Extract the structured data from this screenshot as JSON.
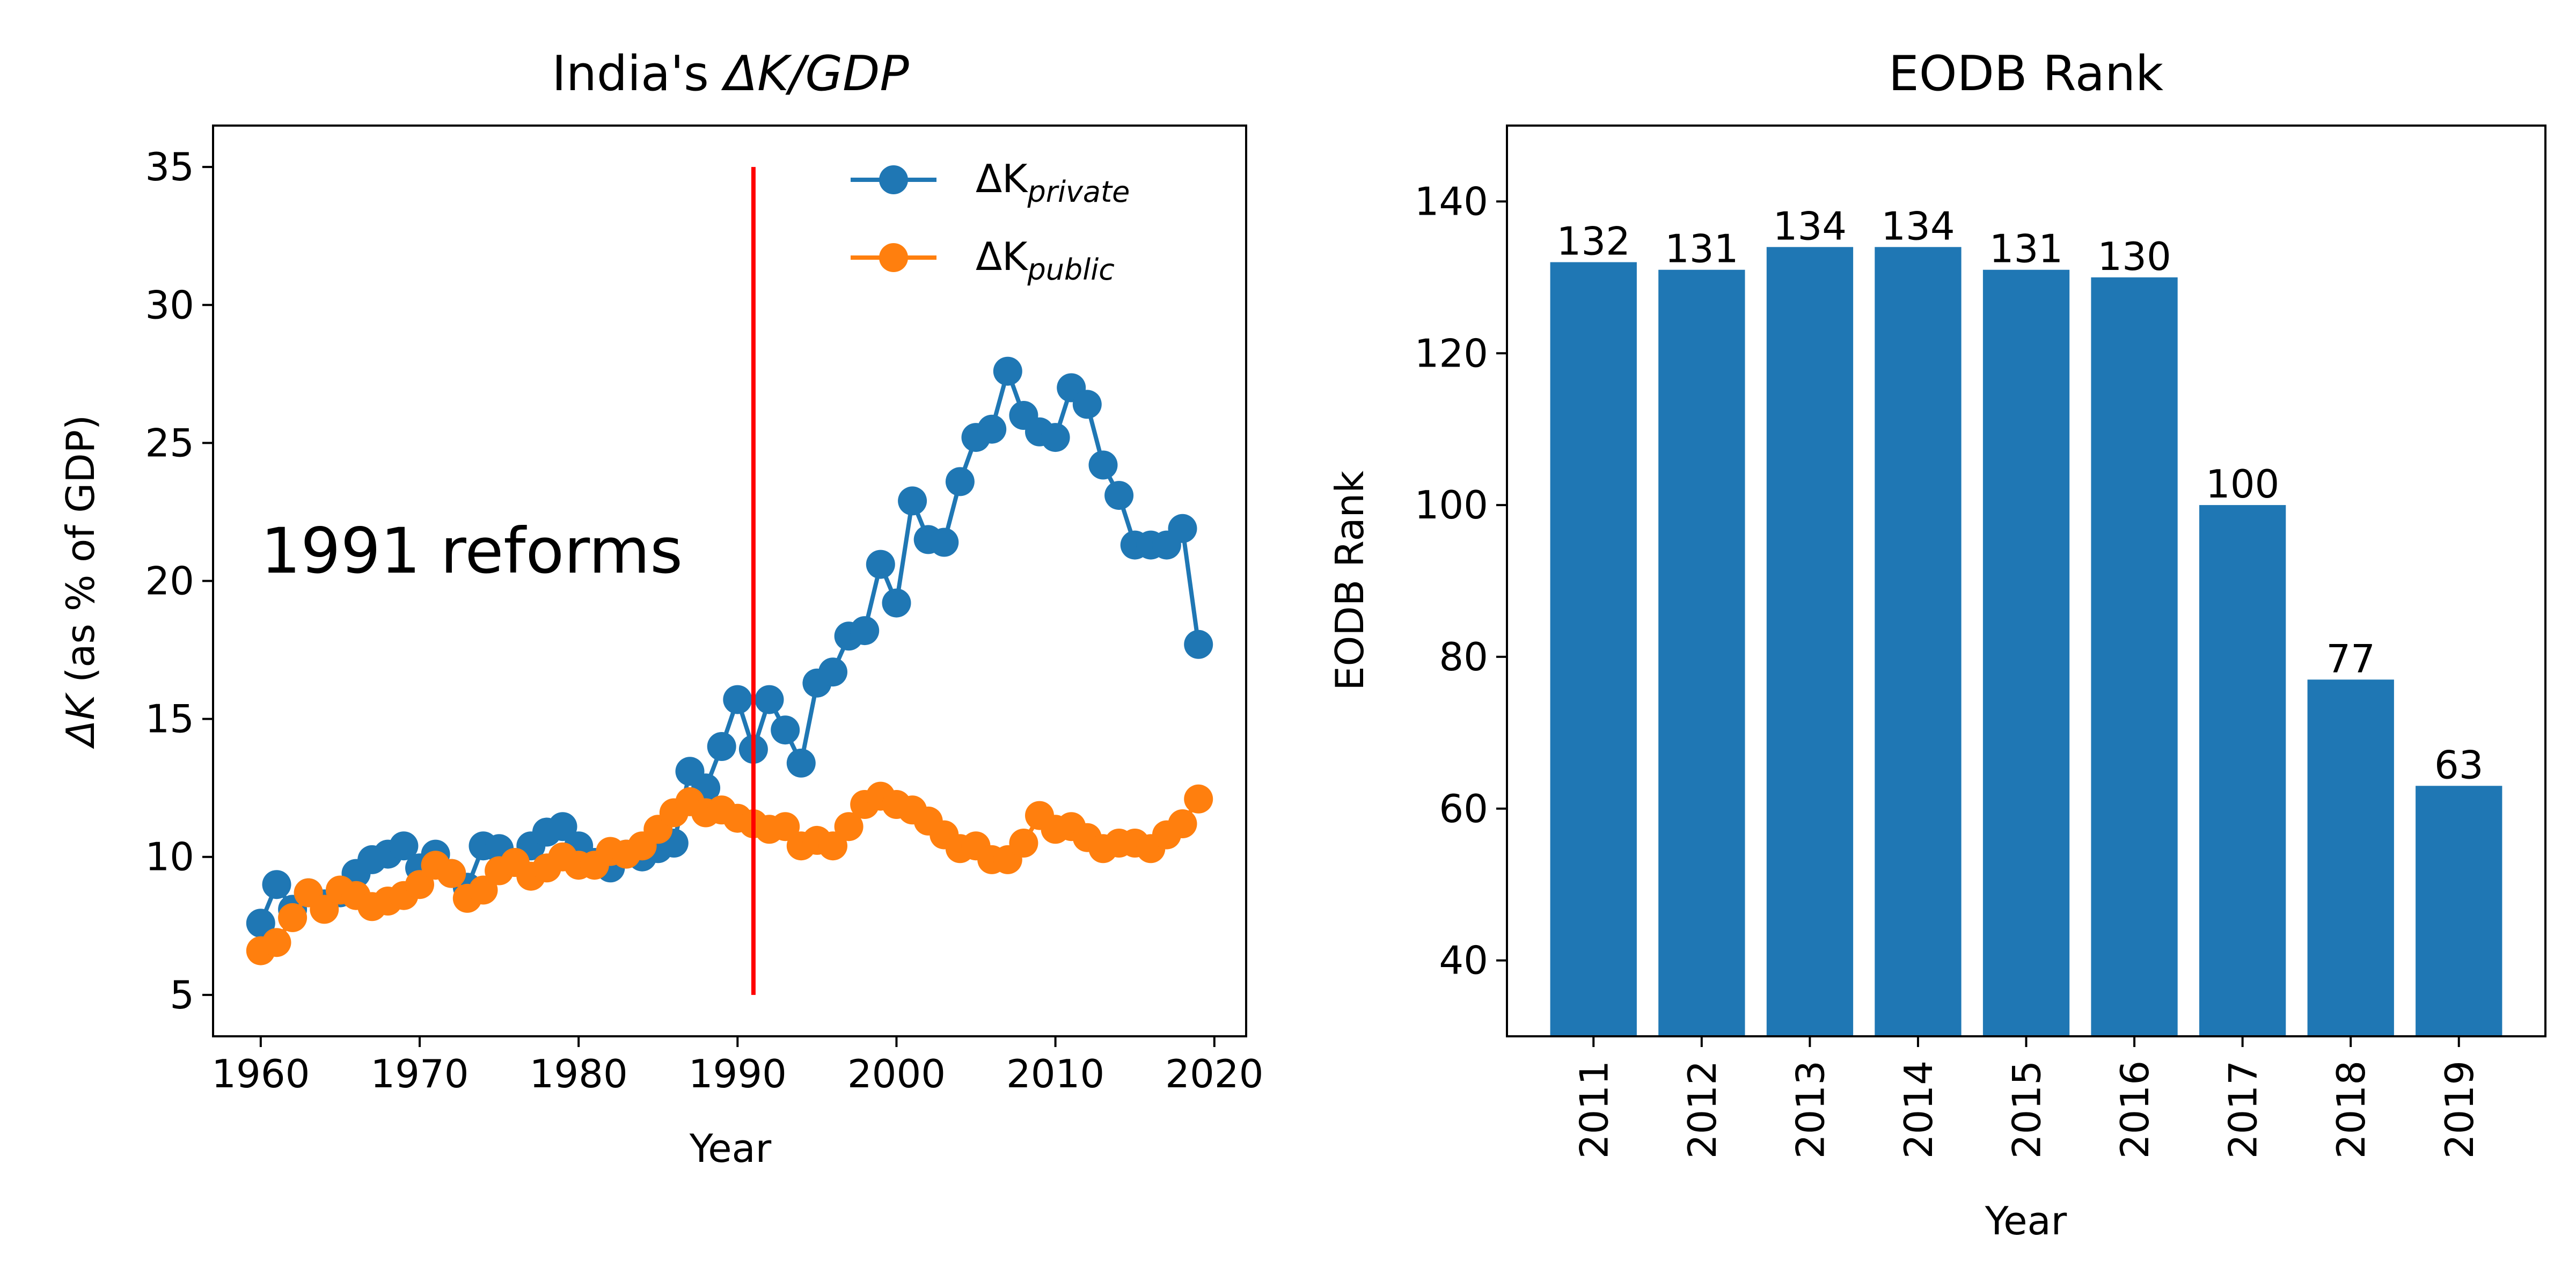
{
  "colors": {
    "private": "#1f77b4",
    "public": "#ff7f0e",
    "reform": "#ff0000",
    "bar": "#1f77b4"
  },
  "chart_data": [
    {
      "type": "line",
      "title_prefix": "India's ",
      "title_math": "ΔK/GDP",
      "xlabel": "Year",
      "ylabel_math": "ΔK",
      "ylabel_rest": " (as % of GDP)",
      "xlim": [
        1957,
        2022
      ],
      "ylim": [
        3.5,
        36.5
      ],
      "xticks": [
        1960,
        1970,
        1980,
        1990,
        2000,
        2010,
        2020
      ],
      "yticks": [
        5,
        10,
        15,
        20,
        25,
        30,
        35
      ],
      "grid": false,
      "legend_position": "top-right",
      "annotation": {
        "text": "1991 reforms",
        "x": 1960,
        "y": 20.3
      },
      "reference_line": {
        "x": 1991,
        "y_from": 5,
        "y_to": 35
      },
      "x": [
        1960,
        1961,
        1962,
        1963,
        1964,
        1965,
        1966,
        1967,
        1968,
        1969,
        1970,
        1971,
        1972,
        1973,
        1974,
        1975,
        1976,
        1977,
        1978,
        1979,
        1980,
        1981,
        1982,
        1983,
        1984,
        1985,
        1986,
        1987,
        1988,
        1989,
        1990,
        1991,
        1992,
        1993,
        1994,
        1995,
        1996,
        1997,
        1998,
        1999,
        2000,
        2001,
        2002,
        2003,
        2004,
        2005,
        2006,
        2007,
        2008,
        2009,
        2010,
        2011,
        2012,
        2013,
        2014,
        2015,
        2016,
        2017,
        2018,
        2019
      ],
      "series": [
        {
          "name_base": "ΔK",
          "name_sub": "private",
          "color_key": "private",
          "values": [
            7.6,
            9.0,
            8.1,
            8.7,
            8.3,
            8.7,
            9.4,
            9.9,
            10.1,
            10.4,
            9.6,
            10.1,
            9.4,
            8.9,
            10.4,
            10.3,
            9.8,
            10.4,
            10.9,
            11.1,
            10.4,
            9.8,
            9.6,
            10.1,
            10.0,
            10.3,
            10.5,
            13.1,
            12.5,
            14.0,
            15.7,
            13.9,
            15.7,
            14.6,
            13.4,
            16.3,
            16.7,
            18.0,
            18.2,
            20.6,
            19.2,
            22.9,
            21.5,
            21.4,
            23.6,
            25.2,
            25.5,
            27.6,
            26.0,
            25.4,
            25.2,
            27.0,
            26.4,
            24.2,
            23.1,
            21.3,
            21.3,
            21.3,
            21.9,
            17.7
          ]
        },
        {
          "name_base": "ΔK",
          "name_sub": "public",
          "color_key": "public",
          "values": [
            6.6,
            6.9,
            7.8,
            8.7,
            8.1,
            8.8,
            8.6,
            8.2,
            8.4,
            8.6,
            9.0,
            9.7,
            9.4,
            8.5,
            8.8,
            9.5,
            9.8,
            9.3,
            9.6,
            10.0,
            9.7,
            9.7,
            10.2,
            10.1,
            10.4,
            11.0,
            11.6,
            12.0,
            11.6,
            11.7,
            11.4,
            11.2,
            11.0,
            11.1,
            10.4,
            10.6,
            10.4,
            11.1,
            11.9,
            12.2,
            11.9,
            11.7,
            11.3,
            10.8,
            10.3,
            10.4,
            9.9,
            9.9,
            10.5,
            11.5,
            11.0,
            11.1,
            10.7,
            10.3,
            10.5,
            10.5,
            10.3,
            10.8,
            11.2,
            12.1
          ]
        }
      ]
    },
    {
      "type": "bar",
      "title": "EODB Rank",
      "xlabel": "Year",
      "ylabel": "EODB Rank",
      "ylim": [
        30,
        150
      ],
      "yticks": [
        40,
        60,
        80,
        100,
        120,
        140
      ],
      "grid": false,
      "categories": [
        "2011",
        "2012",
        "2013",
        "2014",
        "2015",
        "2016",
        "2017",
        "2018",
        "2019"
      ],
      "values": [
        132,
        131,
        134,
        134,
        131,
        130,
        100,
        77,
        63
      ],
      "data_labels": [
        "132",
        "131",
        "134",
        "134",
        "131",
        "130",
        "100",
        "77",
        "63"
      ]
    }
  ]
}
